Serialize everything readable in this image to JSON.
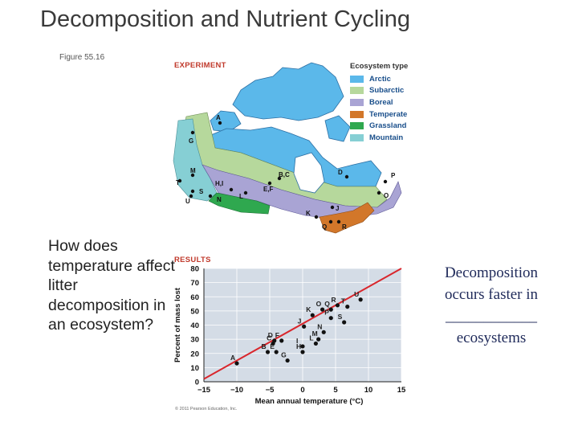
{
  "slide": {
    "title": "Decomposition and Nutrient Cycling",
    "figure_label": "Figure 55.16",
    "question": "How does temperature affect litter decomposition in an ecosystem?",
    "side_text_line1": "Decomposition occurs faster in",
    "side_text_blank": "____________",
    "side_text_line2": "ecosystems",
    "copyright": "© 2011 Pearson Education, Inc."
  },
  "experiment": {
    "heading": "EXPERIMENT",
    "legend_title": "Ecosystem type",
    "legend": [
      {
        "label": "Arctic",
        "color": "#5bb8ea"
      },
      {
        "label": "Subarctic",
        "color": "#b6d89c"
      },
      {
        "label": "Boreal",
        "color": "#a9a4d4"
      },
      {
        "label": "Temperate",
        "color": "#d2772a"
      },
      {
        "label": "Grassland",
        "color": "#2fa84f"
      },
      {
        "label": "Mountain",
        "color": "#86cfd4"
      }
    ],
    "map_sites": [
      "A",
      "G",
      "M",
      "T",
      "S",
      "U",
      "N",
      "H,I",
      "L",
      "B,C",
      "E,F",
      "D",
      "P",
      "O",
      "K",
      "J",
      "Q",
      "R"
    ]
  },
  "results": {
    "heading": "RESULTS"
  },
  "chart_data": {
    "type": "scatter",
    "xlabel": "Mean annual temperature (°C)",
    "ylabel": "Percent of mass lost",
    "xlim": [
      -15,
      15
    ],
    "ylim": [
      0,
      80
    ],
    "xticks": [
      -15,
      -10,
      -5,
      0,
      5,
      10,
      15
    ],
    "yticks": [
      0,
      10,
      20,
      30,
      40,
      50,
      60,
      70,
      80
    ],
    "xtick_labels": [
      "−15",
      "−10",
      "−5",
      "0",
      "5",
      "10",
      "15"
    ],
    "ytick_labels": [
      "0",
      "10",
      "20",
      "30",
      "40",
      "50",
      "60",
      "70",
      "80"
    ],
    "trendline": {
      "x": [
        -15,
        15
      ],
      "y": [
        2,
        80
      ],
      "color": "#d9262c"
    },
    "grid": true,
    "points": [
      {
        "label": "A",
        "x": -10,
        "y": 13
      },
      {
        "label": "B",
        "x": -5.3,
        "y": 21
      },
      {
        "label": "E",
        "x": -4,
        "y": 21
      },
      {
        "label": "G",
        "x": -2.3,
        "y": 15
      },
      {
        "label": "C",
        "x": -4.5,
        "y": 27
      },
      {
        "label": "D",
        "x": -4.3,
        "y": 29
      },
      {
        "label": "F",
        "x": -3.2,
        "y": 29
      },
      {
        "label": "I",
        "x": 0,
        "y": 25
      },
      {
        "label": "H",
        "x": 0,
        "y": 21
      },
      {
        "label": "L",
        "x": 2,
        "y": 27
      },
      {
        "label": "M",
        "x": 2.4,
        "y": 30
      },
      {
        "label": "N",
        "x": 3.2,
        "y": 35
      },
      {
        "label": "J",
        "x": 0.2,
        "y": 39
      },
      {
        "label": "K",
        "x": 1.5,
        "y": 47
      },
      {
        "label": "O",
        "x": 3,
        "y": 51
      },
      {
        "label": "Q",
        "x": 4.3,
        "y": 51
      },
      {
        "label": "P",
        "x": 4.3,
        "y": 45
      },
      {
        "label": "R",
        "x": 5.3,
        "y": 54
      },
      {
        "label": "S",
        "x": 6.3,
        "y": 42
      },
      {
        "label": "T",
        "x": 6.8,
        "y": 53
      },
      {
        "label": "U",
        "x": 8.8,
        "y": 58
      }
    ]
  }
}
